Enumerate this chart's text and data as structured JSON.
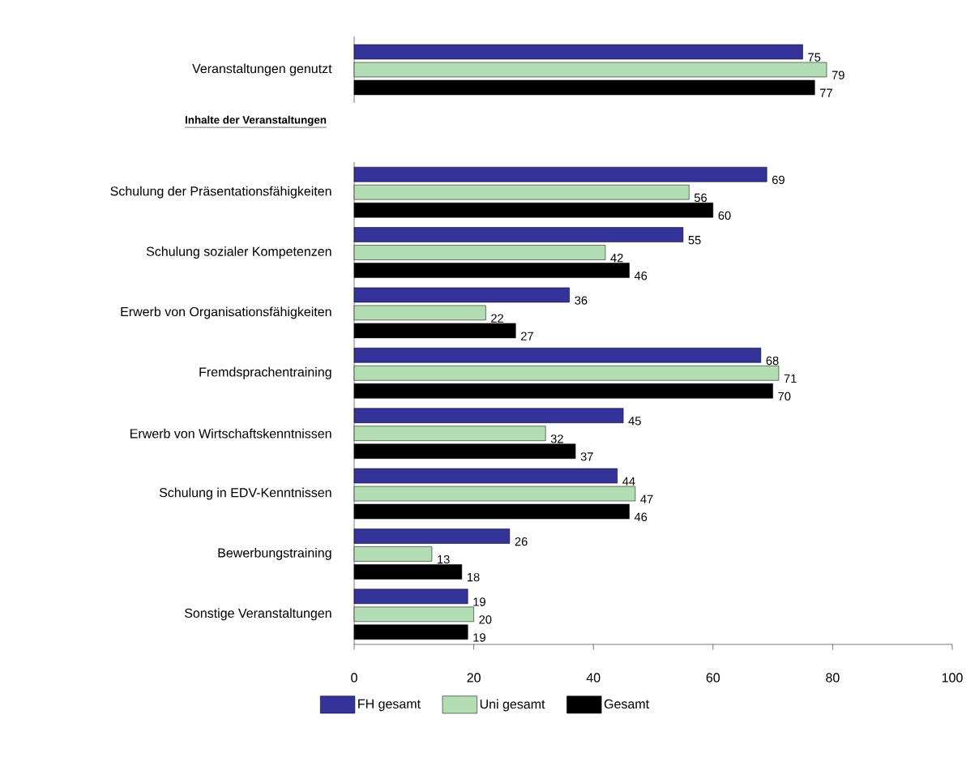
{
  "chart_data": [
    {
      "type": "bar",
      "orientation": "horizontal",
      "categories": [
        "Veranstaltungen genutzt"
      ],
      "series": [
        {
          "color": "#333399",
          "values": [
            75
          ]
        },
        {
          "color": "#b3deb3",
          "values": [
            79
          ]
        },
        {
          "color": "#000000",
          "values": [
            77
          ]
        }
      ],
      "xlim": [
        0,
        100
      ],
      "xticks": [
        0,
        20,
        40,
        60,
        80,
        100
      ],
      "tick_labels": "y",
      "data_labels": true
    },
    {
      "type": "bar",
      "orientation": "horizontal",
      "title": "Inhalte der Veranstaltungen",
      "categories": [
        "Schulung der Präsentationsfähigkeiten",
        "Schulung sozialer Kompetenzen",
        "Erwerb von Organisationsfähigkeiten",
        "Fremdsprachentraining",
        "Erwerb von Wirtschaftskenntnissen",
        "Schulung in EDV-Kenntnissen",
        "Bewerbungstraining",
        "Sonstige Veranstaltungen"
      ],
      "series": [
        {
          "name": "FH gesamt",
          "color": "#333399",
          "values": [
            69,
            55,
            36,
            68,
            45,
            44,
            26,
            19
          ]
        },
        {
          "name": "Uni gesamt",
          "color": "#b3deb3",
          "values": [
            56,
            42,
            22,
            71,
            32,
            47,
            13,
            20
          ]
        },
        {
          "name": "Gesamt",
          "color": "#000000",
          "values": [
            60,
            46,
            27,
            70,
            37,
            46,
            18,
            19
          ]
        }
      ],
      "xlim": [
        0,
        100
      ],
      "xticks": [
        0,
        20,
        40,
        60,
        80,
        100
      ],
      "data_labels": true,
      "legend": "bottom"
    }
  ]
}
